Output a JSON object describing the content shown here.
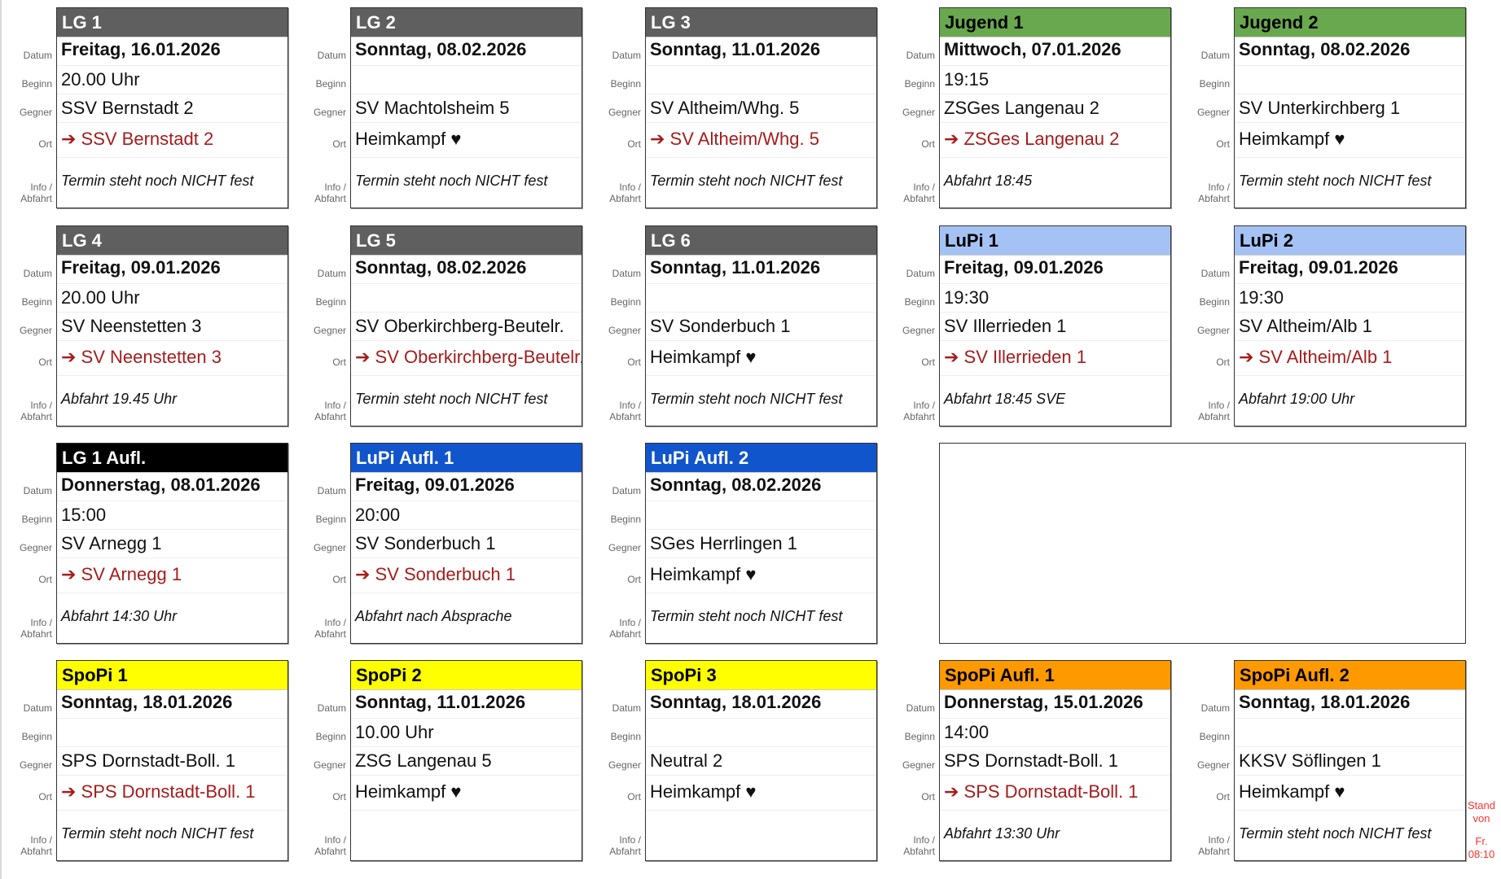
{
  "labels": {
    "datum": "Datum",
    "beginn": "Beginn",
    "gegner": "Gegner",
    "ort": "Ort",
    "info1": "Info /",
    "info2": "Abfahrt"
  },
  "colors": {
    "gray": "#5f5f5f",
    "green": "#6aa84f",
    "lightblue": "#a4c2f4",
    "black": "#000000",
    "blue": "#1155cc",
    "yellow": "#ffff00",
    "orange": "#ff9900",
    "away_red": "#a61c1c"
  },
  "cards": [
    {
      "team": "LG 1",
      "header_color": "gray",
      "date": "Freitag, 16.01.2026",
      "time": "20.00 Uhr",
      "opponent": "SSV Bernstadt 2",
      "ort": "➔ SSV Bernstadt 2",
      "away": true,
      "info": "Termin steht noch NICHT fest"
    },
    {
      "team": "LG 2",
      "header_color": "gray",
      "date": "Sonntag, 08.02.2026",
      "time": "",
      "opponent": "SV Machtolsheim 5",
      "ort": "Heimkampf ♥",
      "away": false,
      "info": "Termin steht noch NICHT fest"
    },
    {
      "team": "LG 3",
      "header_color": "gray",
      "date": "Sonntag, 11.01.2026",
      "time": "",
      "opponent": "SV Altheim/Whg. 5",
      "ort": "➔ SV Altheim/Whg. 5",
      "away": true,
      "info": "Termin steht noch NICHT fest"
    },
    {
      "team": "Jugend 1",
      "header_color": "green",
      "date": "Mittwoch, 07.01.2026",
      "time": "19:15",
      "opponent": "ZSGes Langenau 2",
      "ort": "➔ ZSGes Langenau 2",
      "away": true,
      "info": "Abfahrt 18:45"
    },
    {
      "team": "Jugend 2",
      "header_color": "green",
      "date": "Sonntag, 08.02.2026",
      "time": "",
      "opponent": "SV Unterkirchberg 1",
      "ort": "Heimkampf ♥",
      "away": false,
      "info": "Termin steht noch NICHT fest"
    },
    {
      "team": "LG 4",
      "header_color": "gray",
      "date": "Freitag, 09.01.2026",
      "time": "20.00 Uhr",
      "opponent": "SV Neenstetten 3",
      "ort": "➔ SV Neenstetten 3",
      "away": true,
      "info": "Abfahrt 19.45 Uhr"
    },
    {
      "team": "LG 5",
      "header_color": "gray",
      "date": "Sonntag, 08.02.2026",
      "time": "",
      "opponent": "SV Oberkirchberg-Beutelr.",
      "ort": "➔ SV Oberkirchberg-Beutelr.",
      "away": true,
      "info": "Termin steht noch NICHT fest"
    },
    {
      "team": "LG 6",
      "header_color": "gray",
      "date": "Sonntag, 11.01.2026",
      "time": "",
      "opponent": "SV Sonderbuch 1",
      "ort": "Heimkampf ♥",
      "away": false,
      "info": "Termin steht noch NICHT fest"
    },
    {
      "team": "LuPi 1",
      "header_color": "lightblue",
      "date": "Freitag, 09.01.2026",
      "time": "19:30",
      "opponent": "SV Illerrieden 1",
      "ort": "➔ SV Illerrieden 1",
      "away": true,
      "info": "Abfahrt 18:45 SVE"
    },
    {
      "team": "LuPi 2",
      "header_color": "lightblue",
      "date": "Freitag, 09.01.2026",
      "time": "19:30",
      "opponent": "SV Altheim/Alb 1",
      "ort": "➔ SV Altheim/Alb 1",
      "away": true,
      "info": "Abfahrt 19:00 Uhr"
    },
    {
      "team": "LG 1 Aufl.",
      "header_color": "black",
      "date": "Donnerstag, 08.01.2026",
      "time": "15:00",
      "opponent": "SV Arnegg 1",
      "ort": "➔ SV Arnegg 1",
      "away": true,
      "info": "Abfahrt 14:30 Uhr"
    },
    {
      "team": "LuPi Aufl. 1",
      "header_color": "blue",
      "date": "Freitag, 09.01.2026",
      "time": "20:00",
      "opponent": "SV Sonderbuch 1",
      "ort": "➔ SV Sonderbuch 1",
      "away": true,
      "info": "Abfahrt nach Absprache"
    },
    {
      "team": "LuPi Aufl. 2",
      "header_color": "blue",
      "date": "Sonntag, 08.02.2026",
      "time": "",
      "opponent": "SGes Herrlingen 1",
      "ort": "Heimkampf ♥",
      "away": false,
      "info": "Termin steht noch NICHT fest"
    },
    null,
    null,
    {
      "team": "SpoPi 1",
      "header_color": "yellow",
      "date": "Sonntag, 18.01.2026",
      "time": "",
      "opponent": "SPS Dornstadt-Boll. 1",
      "ort": "➔ SPS Dornstadt-Boll. 1",
      "away": true,
      "info": "Termin steht noch NICHT fest"
    },
    {
      "team": "SpoPi 2",
      "header_color": "yellow",
      "date": "Sonntag, 11.01.2026",
      "time": "10.00 Uhr",
      "opponent": "ZSG Langenau 5",
      "ort": "Heimkampf ♥",
      "away": false,
      "info": ""
    },
    {
      "team": "SpoPi 3",
      "header_color": "yellow",
      "date": "Sonntag, 18.01.2026",
      "time": "",
      "opponent": "Neutral 2",
      "ort": "Heimkampf ♥",
      "away": false,
      "info": ""
    },
    {
      "team": "SpoPi Aufl. 1",
      "header_color": "orange",
      "date": "Donnerstag, 15.01.2026",
      "time": "14:00",
      "opponent": "SPS Dornstadt-Boll. 1",
      "ort": "➔ SPS Dornstadt-Boll. 1",
      "away": true,
      "info": "Abfahrt 13:30 Uhr"
    },
    {
      "team": "SpoPi Aufl. 2",
      "header_color": "orange",
      "date": "Sonntag, 18.01.2026",
      "time": "",
      "opponent": "KKSV Söflingen 1",
      "ort": "Heimkampf ♥",
      "away": false,
      "info": "Termin steht noch NICHT fest"
    }
  ],
  "stand": {
    "line1": "Stand",
    "line2": "von",
    "line3": "Fr.",
    "line4": "08:10"
  }
}
